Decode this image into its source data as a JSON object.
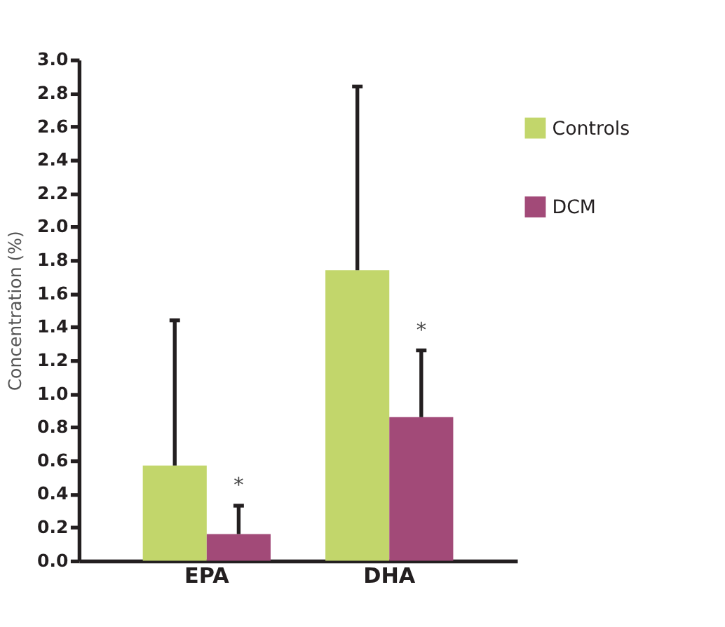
{
  "chart_data": {
    "type": "bar",
    "ylabel": "Concentration (%)",
    "categories": [
      "EPA",
      "DHA"
    ],
    "series": [
      {
        "name": "Controls",
        "color": "#c2d66b",
        "values": [
          0.57,
          1.74
        ],
        "errors": [
          [
            0.57,
            1.44
          ],
          [
            1.74,
            2.84
          ]
        ]
      },
      {
        "name": "DCM",
        "color": "#a24a78",
        "values": [
          0.16,
          0.86
        ],
        "errors": [
          [
            0.16,
            0.33
          ],
          [
            0.86,
            1.26
          ]
        ]
      }
    ],
    "annotations": [
      {
        "text": "*",
        "x": "EPA",
        "y": 0.45
      },
      {
        "text": "*",
        "x": "DHA",
        "y": 1.38
      }
    ],
    "ylim": [
      0,
      3.0
    ],
    "yticks": [
      {
        "value": 0,
        "label": "0.0"
      },
      0.2,
      0.4,
      0.6,
      0.8,
      {
        "value": 1,
        "label": "1.0"
      },
      1.2,
      1.4,
      1.6,
      1.8,
      {
        "value": 2,
        "label": "2.0"
      },
      2.2,
      2.4,
      2.6,
      2.8,
      {
        "value": 3,
        "label": "3.0"
      }
    ],
    "grid": false,
    "legend": "top right"
  }
}
